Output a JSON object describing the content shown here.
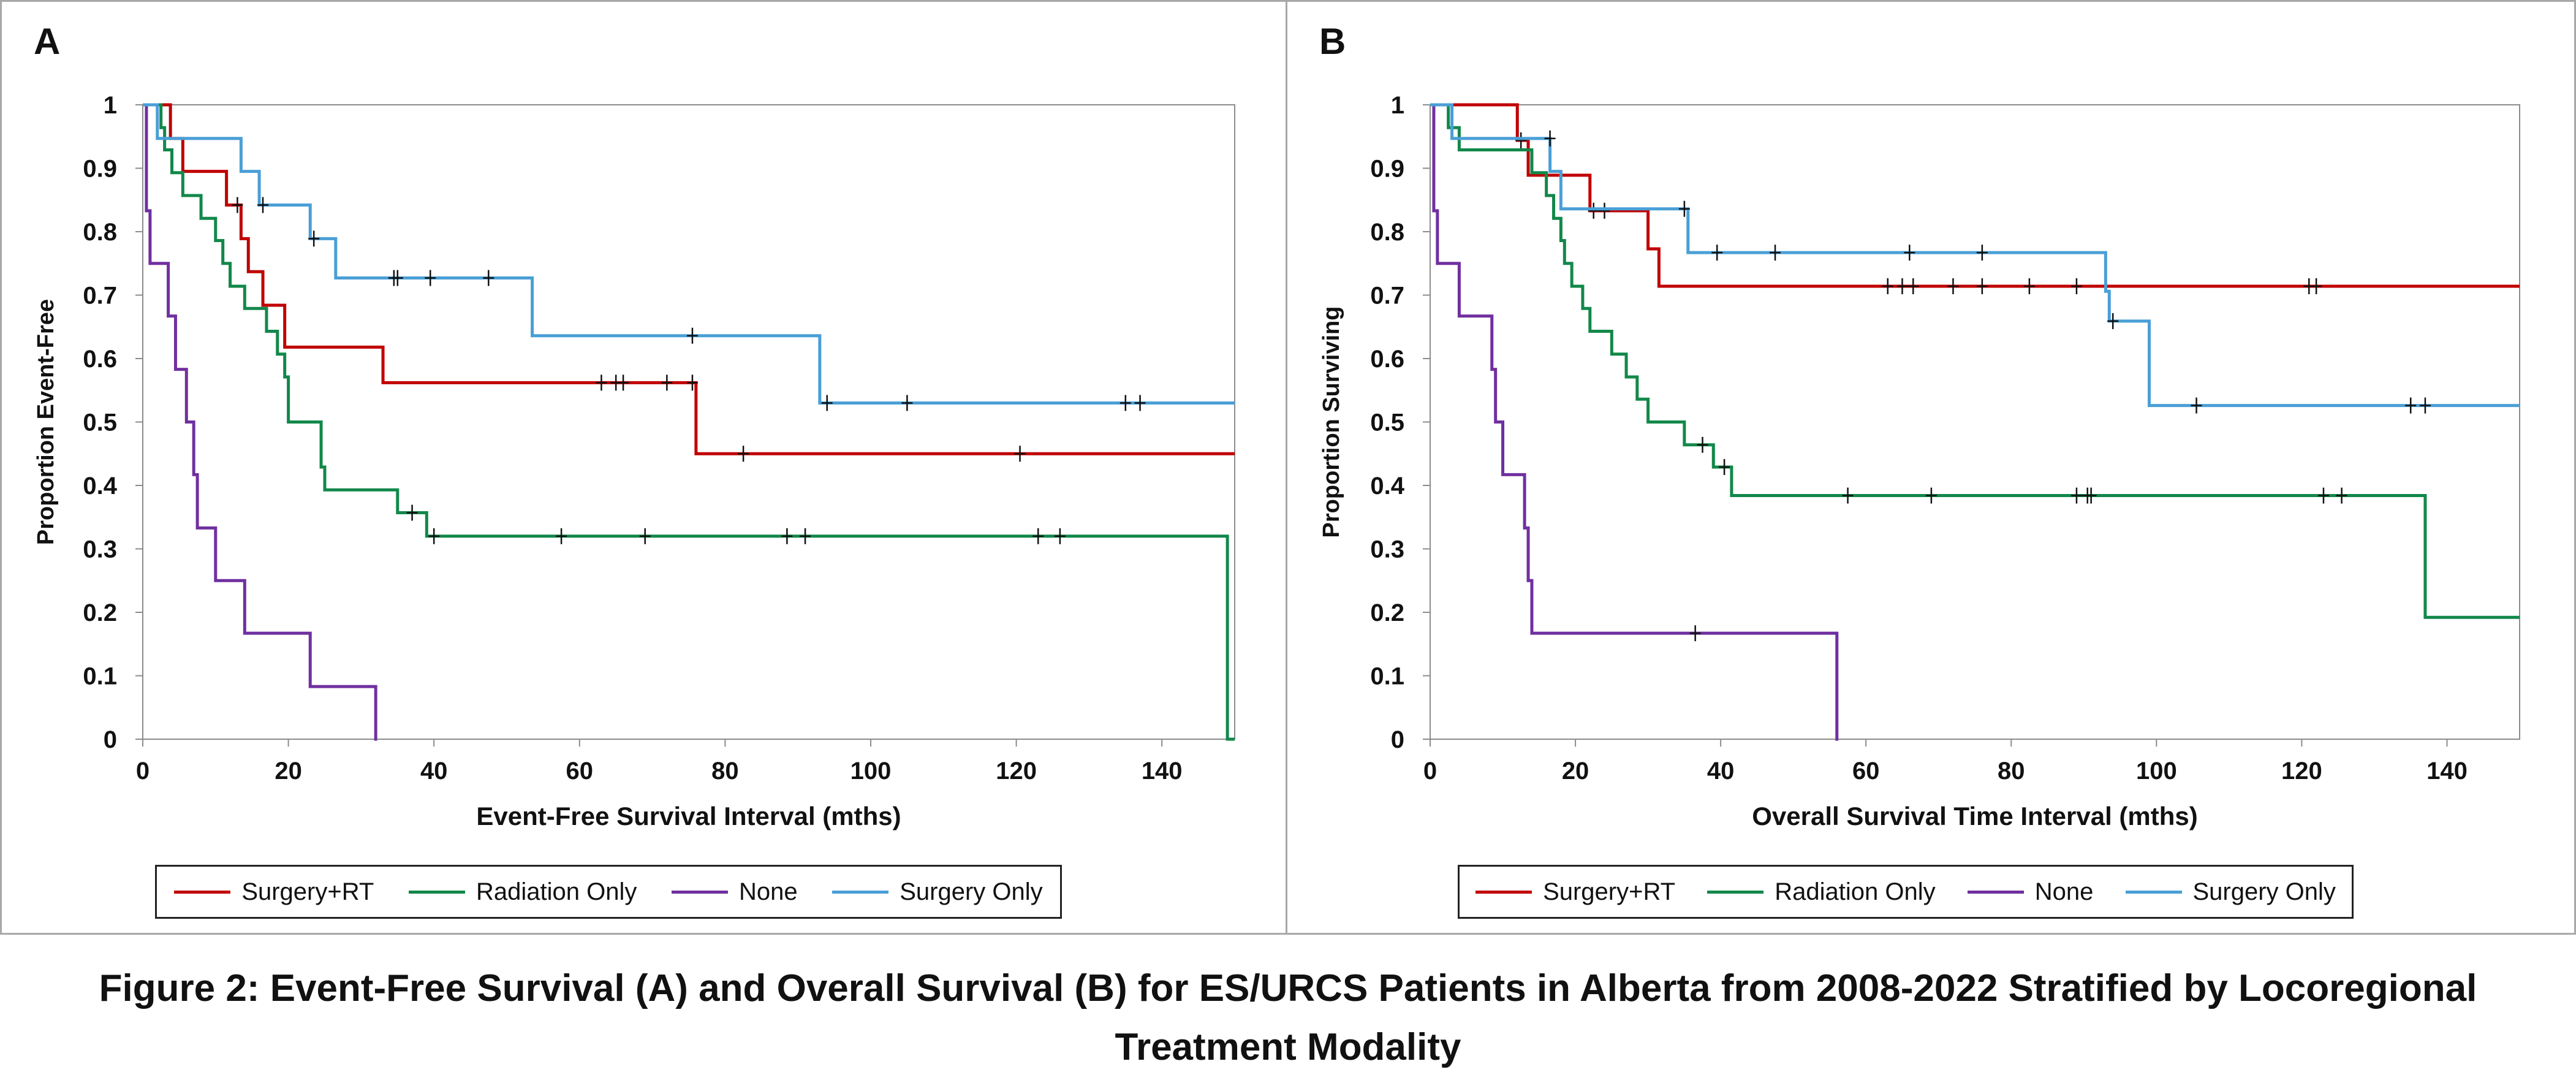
{
  "caption": {
    "line1": "Figure 2: Event-Free Survival (A) and Overall Survival (B) for ES/URCS Patients in Alberta from 2008-2022 Stratified by Locoregional",
    "line2": "Treatment Modality"
  },
  "colors": {
    "surgery_rt": "#c00000",
    "radiation_only": "#12884a",
    "none": "#7030a0",
    "surgery_only": "#4a9fd6",
    "axis": "#8c8c8c",
    "censor": "#111111"
  },
  "legend_items": [
    "Surgery+RT",
    "Radiation Only",
    "None",
    "Surgery Only"
  ],
  "chart_data": [
    {
      "panel": "A",
      "type": "line",
      "step": true,
      "xlabel": "Event-Free Survival Interval (mths)",
      "ylabel": "Proportion Event-Free",
      "xlim": [
        0,
        150
      ],
      "ylim": [
        0,
        1
      ],
      "xticks": [
        0,
        20,
        40,
        60,
        80,
        100,
        120,
        140
      ],
      "yticks": [
        0,
        0.1,
        0.2,
        0.3,
        0.4,
        0.5,
        0.6,
        0.7,
        0.8,
        0.9,
        1
      ],
      "legend_position": "bottom",
      "series": [
        {
          "name": "Surgery+RT",
          "color_key": "surgery_rt",
          "steps": [
            [
              0,
              1
            ],
            [
              3.8,
              0.947
            ],
            [
              5.5,
              0.895
            ],
            [
              11.5,
              0.842
            ],
            [
              13.5,
              0.789
            ],
            [
              14.5,
              0.737
            ],
            [
              16.5,
              0.684
            ],
            [
              19.5,
              0.618
            ],
            [
              33,
              0.562
            ],
            [
              76,
              0.45
            ],
            [
              150,
              0.45
            ]
          ],
          "censored": [
            [
              13,
              0.842
            ],
            [
              63,
              0.562
            ],
            [
              65,
              0.562
            ],
            [
              66,
              0.562
            ],
            [
              72,
              0.562
            ],
            [
              75.5,
              0.562
            ],
            [
              82.5,
              0.45
            ],
            [
              120.5,
              0.45
            ]
          ]
        },
        {
          "name": "Radiation Only",
          "color_key": "radiation_only",
          "steps": [
            [
              0,
              1
            ],
            [
              2.5,
              0.964
            ],
            [
              3,
              0.929
            ],
            [
              4,
              0.893
            ],
            [
              5.5,
              0.857
            ],
            [
              8,
              0.821
            ],
            [
              10,
              0.786
            ],
            [
              11,
              0.75
            ],
            [
              12,
              0.714
            ],
            [
              14,
              0.679
            ],
            [
              17,
              0.643
            ],
            [
              18.5,
              0.607
            ],
            [
              19.5,
              0.571
            ],
            [
              20,
              0.5
            ],
            [
              24.5,
              0.429
            ],
            [
              25,
              0.393
            ],
            [
              35,
              0.357
            ],
            [
              39,
              0.32
            ],
            [
              149,
              0
            ],
            [
              150,
              0
            ]
          ],
          "censored": [
            [
              37,
              0.357
            ],
            [
              40,
              0.32
            ],
            [
              57.5,
              0.32
            ],
            [
              69,
              0.32
            ],
            [
              88.5,
              0.32
            ],
            [
              91,
              0.32
            ],
            [
              123,
              0.32
            ],
            [
              126,
              0.32
            ]
          ]
        },
        {
          "name": "None",
          "color_key": "none",
          "steps": [
            [
              0,
              1
            ],
            [
              0.5,
              0.833
            ],
            [
              1,
              0.75
            ],
            [
              3.5,
              0.667
            ],
            [
              4.5,
              0.583
            ],
            [
              6,
              0.5
            ],
            [
              7,
              0.417
            ],
            [
              7.5,
              0.333
            ],
            [
              10,
              0.25
            ],
            [
              14,
              0.167
            ],
            [
              23,
              0.083
            ],
            [
              32,
              0
            ],
            [
              32.2,
              0
            ]
          ],
          "censored": []
        },
        {
          "name": "Surgery Only",
          "color_key": "surgery_only",
          "steps": [
            [
              0,
              1
            ],
            [
              2,
              0.947
            ],
            [
              13.5,
              0.895
            ],
            [
              16,
              0.842
            ],
            [
              23,
              0.789
            ],
            [
              26.5,
              0.727
            ],
            [
              53.5,
              0.636
            ],
            [
              93,
              0.53
            ],
            [
              150,
              0.53
            ]
          ],
          "censored": [
            [
              16.5,
              0.842
            ],
            [
              23.5,
              0.789
            ],
            [
              34.5,
              0.727
            ],
            [
              35,
              0.727
            ],
            [
              39.5,
              0.727
            ],
            [
              47.5,
              0.727
            ],
            [
              75.5,
              0.636
            ],
            [
              94,
              0.53
            ],
            [
              105,
              0.53
            ],
            [
              135,
              0.53
            ],
            [
              137,
              0.53
            ]
          ]
        }
      ]
    },
    {
      "panel": "B",
      "type": "line",
      "step": true,
      "xlabel": "Overall Survival Time Interval (mths)",
      "ylabel": "Proportion Surviving",
      "xlim": [
        0,
        150
      ],
      "ylim": [
        0,
        1
      ],
      "xticks": [
        0,
        20,
        40,
        60,
        80,
        100,
        120,
        140
      ],
      "yticks": [
        0,
        0.1,
        0.2,
        0.3,
        0.4,
        0.5,
        0.6,
        0.7,
        0.8,
        0.9,
        1
      ],
      "legend_position": "bottom",
      "series": [
        {
          "name": "Surgery+RT",
          "color_key": "surgery_rt",
          "steps": [
            [
              0,
              1
            ],
            [
              12,
              0.944
            ],
            [
              13.5,
              0.889
            ],
            [
              22,
              0.833
            ],
            [
              30,
              0.773
            ],
            [
              31.5,
              0.714
            ],
            [
              150,
              0.714
            ]
          ],
          "censored": [
            [
              12.5,
              0.944
            ],
            [
              22.5,
              0.833
            ],
            [
              24,
              0.833
            ],
            [
              63,
              0.714
            ],
            [
              65,
              0.714
            ],
            [
              66.5,
              0.714
            ],
            [
              72,
              0.714
            ],
            [
              76,
              0.714
            ],
            [
              82.5,
              0.714
            ],
            [
              89,
              0.714
            ],
            [
              121,
              0.714
            ],
            [
              122,
              0.714
            ]
          ]
        },
        {
          "name": "Radiation Only",
          "color_key": "radiation_only",
          "steps": [
            [
              0,
              1
            ],
            [
              2.5,
              0.964
            ],
            [
              4,
              0.929
            ],
            [
              14,
              0.893
            ],
            [
              16,
              0.857
            ],
            [
              17,
              0.821
            ],
            [
              18,
              0.786
            ],
            [
              18.5,
              0.75
            ],
            [
              19.5,
              0.714
            ],
            [
              21,
              0.679
            ],
            [
              22,
              0.643
            ],
            [
              25,
              0.607
            ],
            [
              27,
              0.571
            ],
            [
              28.5,
              0.536
            ],
            [
              30,
              0.5
            ],
            [
              35,
              0.464
            ],
            [
              39,
              0.429
            ],
            [
              41.5,
              0.384
            ],
            [
              137,
              0.192
            ],
            [
              150,
              0.192
            ]
          ],
          "censored": [
            [
              37.5,
              0.464
            ],
            [
              40.5,
              0.429
            ],
            [
              57.5,
              0.384
            ],
            [
              69,
              0.384
            ],
            [
              89,
              0.384
            ],
            [
              90.5,
              0.384
            ],
            [
              91,
              0.384
            ],
            [
              123,
              0.384
            ],
            [
              125.5,
              0.384
            ]
          ]
        },
        {
          "name": "None",
          "color_key": "none",
          "steps": [
            [
              0,
              1
            ],
            [
              0.5,
              0.833
            ],
            [
              1,
              0.75
            ],
            [
              4,
              0.667
            ],
            [
              8.5,
              0.583
            ],
            [
              9,
              0.5
            ],
            [
              10,
              0.417
            ],
            [
              13,
              0.333
            ],
            [
              13.5,
              0.25
            ],
            [
              14,
              0.167
            ],
            [
              56,
              0
            ],
            [
              56.2,
              0
            ]
          ],
          "censored": [
            [
              36.5,
              0.167
            ]
          ]
        },
        {
          "name": "Surgery Only",
          "color_key": "surgery_only",
          "steps": [
            [
              0,
              1
            ],
            [
              3,
              0.947
            ],
            [
              16.5,
              0.895
            ],
            [
              18,
              0.836
            ],
            [
              35.5,
              0.767
            ],
            [
              93,
              0.706
            ],
            [
              93.5,
              0.659
            ],
            [
              99,
              0.526
            ],
            [
              150,
              0.526
            ]
          ],
          "censored": [
            [
              16.5,
              0.947
            ],
            [
              35,
              0.836
            ],
            [
              39.5,
              0.767
            ],
            [
              47.5,
              0.767
            ],
            [
              66,
              0.767
            ],
            [
              76,
              0.767
            ],
            [
              94,
              0.659
            ],
            [
              105.5,
              0.526
            ],
            [
              135,
              0.526
            ],
            [
              137,
              0.526
            ]
          ]
        }
      ]
    }
  ]
}
